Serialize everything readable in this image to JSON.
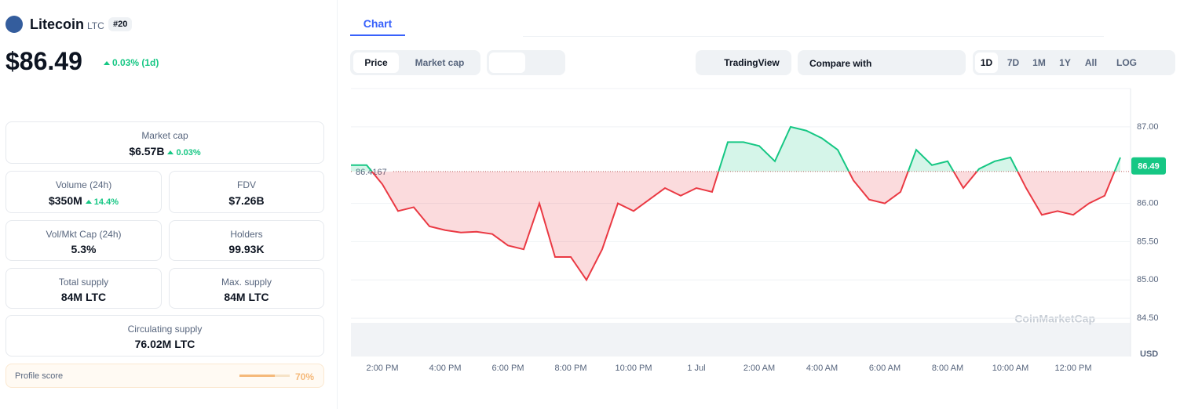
{
  "coin": {
    "name": "Litecoin",
    "symbol": "LTC",
    "rank": "#20",
    "price": "$86.49",
    "change": "0.03% (1d)"
  },
  "stats": [
    {
      "label": "Market cap",
      "value": "$6.57B",
      "change": "0.03%"
    },
    {
      "label": "Volume (24h)",
      "value": "$350M",
      "change": "14.4%"
    },
    {
      "label": "FDV",
      "value": "$7.26B"
    },
    {
      "label": "Vol/Mkt Cap (24h)",
      "value": "5.3%"
    },
    {
      "label": "Holders",
      "value": "99.93K"
    },
    {
      "label": "Total supply",
      "value": "84M LTC"
    },
    {
      "label": "Max. supply",
      "value": "84M LTC"
    },
    {
      "label": "Circulating supply",
      "value": "76.02M LTC"
    }
  ],
  "profile": {
    "label": "Profile score",
    "value": "70%"
  },
  "tabs": [
    "Chart"
  ],
  "toolbar": {
    "modes": [
      "Price",
      "Market cap"
    ],
    "tradingview": "TradingView",
    "compare": "Compare with",
    "ranges": [
      "1D",
      "7D",
      "1M",
      "1Y",
      "All",
      "LOG"
    ]
  },
  "chart_data": {
    "type": "line",
    "watermark": "CoinMarketCap",
    "y_unit": "USD",
    "baseline": 86.4167,
    "current_value": 86.49,
    "up_color": "#16c784",
    "down_color": "#ea3943",
    "categories": [
      null,
      null,
      "2:00 PM",
      null,
      null,
      null,
      "4:00 PM",
      null,
      null,
      null,
      "6:00 PM",
      null,
      null,
      null,
      "8:00 PM",
      null,
      null,
      null,
      "10:00 PM",
      null,
      null,
      null,
      "1 Jul",
      null,
      null,
      null,
      "2:00 AM",
      null,
      null,
      null,
      "4:00 AM",
      null,
      null,
      null,
      "6:00 AM",
      null,
      null,
      null,
      "8:00 AM",
      null,
      null,
      null,
      "10:00 AM",
      null,
      null,
      null,
      "12:00 PM",
      null,
      null,
      null
    ],
    "values": [
      86.5,
      86.5,
      86.25,
      85.9,
      85.95,
      85.7,
      85.65,
      85.62,
      85.63,
      85.6,
      85.45,
      85.4,
      86.0,
      85.3,
      85.3,
      85.0,
      85.4,
      86.0,
      85.9,
      86.05,
      86.2,
      86.1,
      86.2,
      86.15,
      86.8,
      86.8,
      86.75,
      86.55,
      87.0,
      86.95,
      86.85,
      86.7,
      86.3,
      86.05,
      86.0,
      86.15,
      86.7,
      86.5,
      86.55,
      86.2,
      86.45,
      86.55,
      86.6,
      86.2,
      85.85,
      85.9,
      85.85,
      86.0,
      86.1,
      86.6
    ],
    "ylim": [
      84,
      87.5
    ],
    "yticks": [
      {
        "value": 84.5,
        "label": "84.50"
      },
      {
        "value": 85,
        "label": "85.00"
      },
      {
        "value": 85.5,
        "label": "85.50"
      },
      {
        "value": 86,
        "label": "86.00"
      },
      {
        "value": 87,
        "label": "87.00"
      }
    ],
    "grid": true
  }
}
